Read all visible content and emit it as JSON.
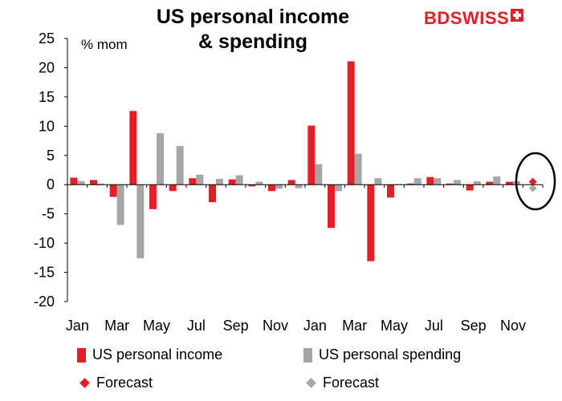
{
  "title_line1": "US personal income",
  "title_line2": "& spending",
  "logo": {
    "bd": "BD",
    "swiss": "SWISS"
  },
  "colors": {
    "income": "#e31e24",
    "spending": "#a6a6a6",
    "forecast_income": "#e31e24",
    "forecast_spending": "#a6a6a6"
  },
  "chart_data": {
    "type": "bar",
    "unit_label": "% mom",
    "ylim": [
      -20,
      25
    ],
    "yticks": [
      25,
      20,
      15,
      10,
      5,
      0,
      -5,
      -10,
      -15,
      -20
    ],
    "x_tick_labels": [
      "Jan",
      "Mar",
      "May",
      "Jul",
      "Sep",
      "Nov",
      "Jan",
      "Mar",
      "May",
      "Jul",
      "Sep",
      "Nov"
    ],
    "categories": [
      "Jan",
      "Feb",
      "Mar",
      "Apr",
      "May",
      "Jun",
      "Jul",
      "Aug",
      "Sep",
      "Oct",
      "Nov",
      "Dec",
      "Jan",
      "Feb",
      "Mar",
      "Apr",
      "May",
      "Jun",
      "Jul",
      "Aug",
      "Sep",
      "Oct",
      "Nov",
      "Dec"
    ],
    "series": [
      {
        "name": "US personal income",
        "values": [
          1.2,
          0.8,
          -2.1,
          12.6,
          -4.2,
          -1.1,
          1.1,
          -3.0,
          0.9,
          -0.3,
          -1.1,
          0.8,
          10.1,
          -7.4,
          21.1,
          -13.1,
          -2.2,
          0.2,
          1.3,
          0.2,
          -1.0,
          0.5,
          0.5,
          null
        ]
      },
      {
        "name": "US personal spending",
        "values": [
          0.6,
          0.2,
          -6.9,
          -12.6,
          8.8,
          6.6,
          1.7,
          1.0,
          1.6,
          0.5,
          -0.7,
          -0.6,
          3.5,
          -1.1,
          5.3,
          1.1,
          0.1,
          1.1,
          1.1,
          0.8,
          0.6,
          1.4,
          0.6,
          null
        ]
      }
    ],
    "forecast": [
      {
        "name": "Forecast",
        "series": "income",
        "category_index": 23,
        "value": 0.5
      },
      {
        "name": "Forecast",
        "series": "spending",
        "category_index": 23,
        "value": -0.6
      }
    ],
    "legend": [
      "US personal income",
      "US personal spending",
      "Forecast",
      "Forecast"
    ],
    "legend_position": "bottom"
  }
}
